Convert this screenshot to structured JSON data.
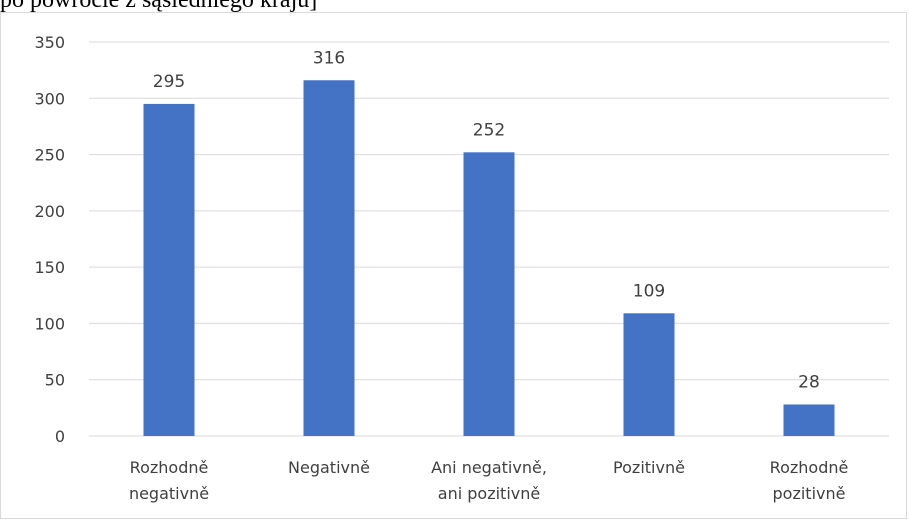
{
  "header": {
    "text_fragment": "po powrocie z sąsiedniego kraju]"
  },
  "chart_data": {
    "type": "bar",
    "categories": [
      [
        "Rozhodně",
        "negativně"
      ],
      [
        "Negativně"
      ],
      [
        "Ani negativně,",
        "ani pozitivně"
      ],
      [
        "Pozitivně"
      ],
      [
        "Rozhodně",
        "pozitivně"
      ]
    ],
    "values": [
      295,
      316,
      252,
      109,
      28
    ],
    "data_labels": [
      "295",
      "316",
      "252",
      "109",
      "28"
    ],
    "ylim": [
      0,
      350
    ],
    "yticks": [
      0,
      50,
      100,
      150,
      200,
      250,
      300,
      350
    ],
    "ytick_labels": [
      "0",
      "50",
      "100",
      "150",
      "200",
      "250",
      "300",
      "350"
    ],
    "grid": true,
    "legend": "none",
    "colors": {
      "bar": "#4472c4",
      "grid": "#d9d9d9",
      "text": "#404040"
    }
  }
}
